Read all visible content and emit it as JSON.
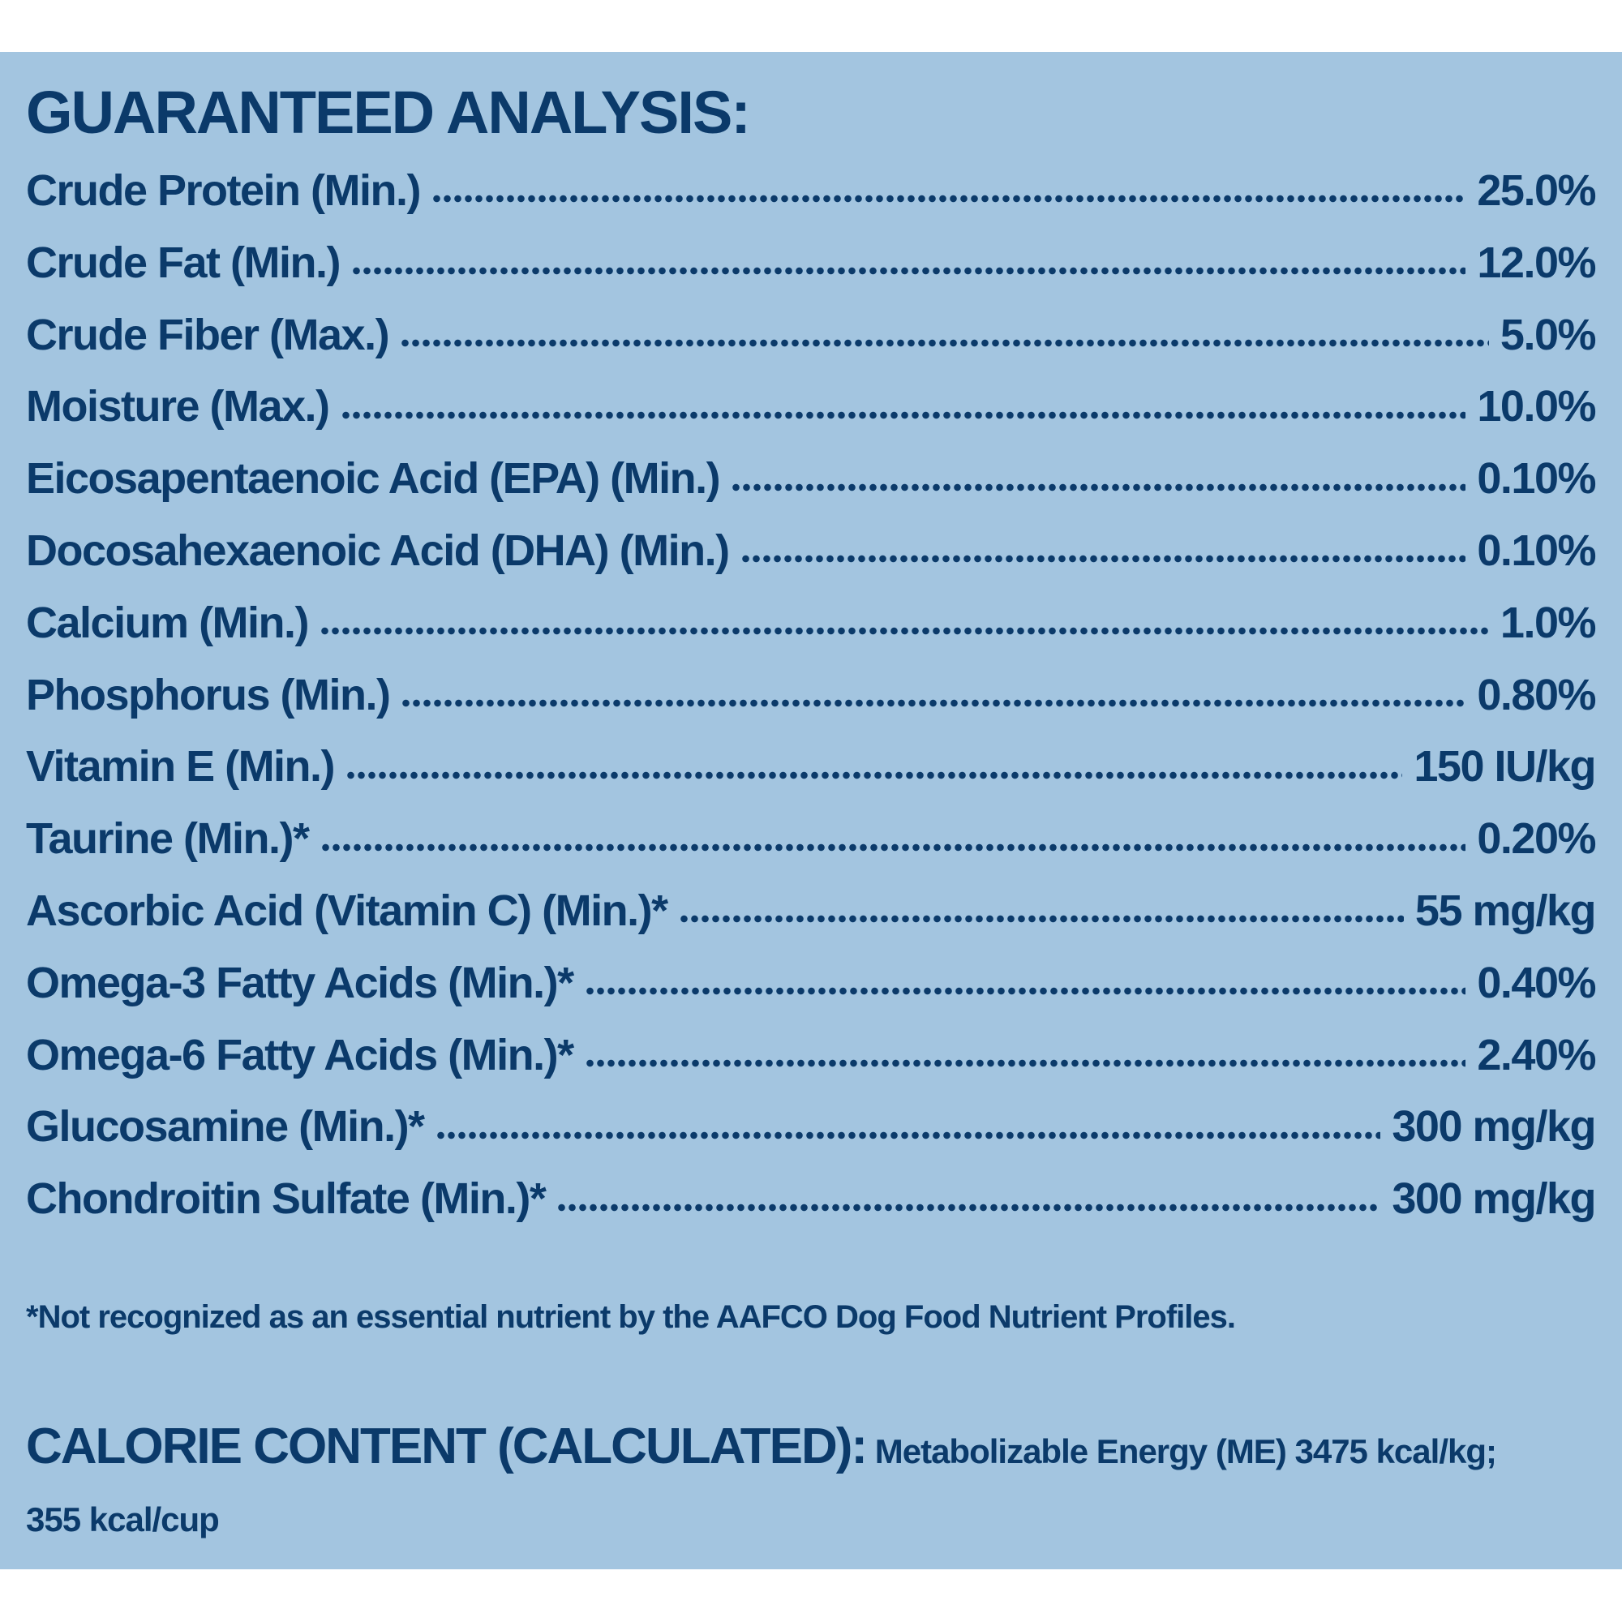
{
  "title": "GUARANTEED ANALYSIS:",
  "rows": [
    {
      "label": "Crude Protein (Min.)",
      "value": "25.0%"
    },
    {
      "label": "Crude Fat (Min.)",
      "value": "12.0%"
    },
    {
      "label": "Crude Fiber (Max.)",
      "value": "5.0%"
    },
    {
      "label": "Moisture (Max.)",
      "value": "10.0%"
    },
    {
      "label": "Eicosapentaenoic Acid (EPA) (Min.)",
      "value": "0.10%"
    },
    {
      "label": "Docosahexaenoic Acid (DHA) (Min.)",
      "value": "0.10%"
    },
    {
      "label": "Calcium (Min.)",
      "value": "1.0%"
    },
    {
      "label": "Phosphorus (Min.)",
      "value": "0.80%"
    },
    {
      "label": "Vitamin E (Min.)",
      "value": "150 IU/kg"
    },
    {
      "label": "Taurine (Min.)*",
      "value": "0.20%"
    },
    {
      "label": "Ascorbic Acid (Vitamin C) (Min.)*",
      "value": "55 mg/kg"
    },
    {
      "label": "Omega-3 Fatty Acids (Min.)*",
      "value": "0.40%"
    },
    {
      "label": "Omega-6 Fatty Acids (Min.)*",
      "value": "2.40%"
    },
    {
      "label": "Glucosamine (Min.)*",
      "value": "300 mg/kg"
    },
    {
      "label": "Chondroitin Sulfate (Min.)*",
      "value": "300 mg/kg"
    }
  ],
  "footnote": "*Not recognized as an essential nutrient by the AAFCO Dog Food Nutrient Profiles.",
  "calorie": {
    "heading": "CALORIE CONTENT (CALCULATED):",
    "text": " Metabolizable Energy (ME) 3475 kcal/kg;",
    "line2": "355 kcal/cup"
  },
  "colors": {
    "background": "#a3c5e0",
    "text": "#0b3a6a"
  }
}
